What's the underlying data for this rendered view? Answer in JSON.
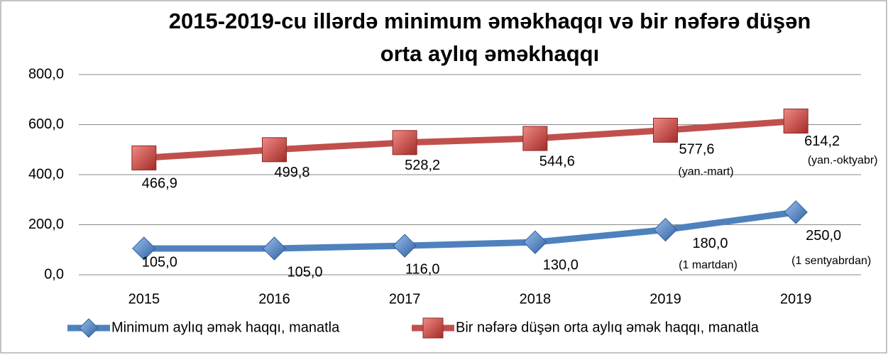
{
  "chart_data": {
    "type": "line",
    "title": [
      "2015-2019-cu illərdə minimum əməkhaqqı və bir nəfərə düşən",
      "orta aylıq əməkhaqqı"
    ],
    "categories": [
      "2015",
      "2016",
      "2017",
      "2018",
      "2019",
      "2019"
    ],
    "series": [
      {
        "name": "Minimum aylıq əmək haqqı, manatla",
        "color": "#4f81bd",
        "marker": "diamond",
        "values": [
          105,
          105,
          116,
          130,
          180,
          250
        ],
        "value_labels": [
          "105,0",
          "105,0",
          "116,0",
          "130,0",
          "180,0",
          "250,0"
        ],
        "notes": [
          null,
          null,
          null,
          null,
          "(1 martdan)",
          "(1 sentyabrdan)"
        ]
      },
      {
        "name": "Bir nəfərə düşən orta aylıq əmək haqqı, manatla",
        "color": "#c0504d",
        "marker": "square",
        "values": [
          466.9,
          499.8,
          528.2,
          544.6,
          577.6,
          614.2
        ],
        "value_labels": [
          "466,9",
          "499,8",
          "528,2",
          "544,6",
          "577,6",
          "614,2"
        ],
        "notes": [
          null,
          null,
          null,
          null,
          "(yan.-mart)",
          "(yan.-oktyabr)"
        ]
      }
    ],
    "ylim": [
      0,
      800
    ],
    "yticks": [
      {
        "value": 0,
        "label": "0,0"
      },
      {
        "value": 200,
        "label": "200,0"
      },
      {
        "value": 400,
        "label": "400,0"
      },
      {
        "value": 600,
        "label": "600,0"
      },
      {
        "value": 800,
        "label": "800,0"
      }
    ],
    "grid": true,
    "legend": "bottom"
  }
}
